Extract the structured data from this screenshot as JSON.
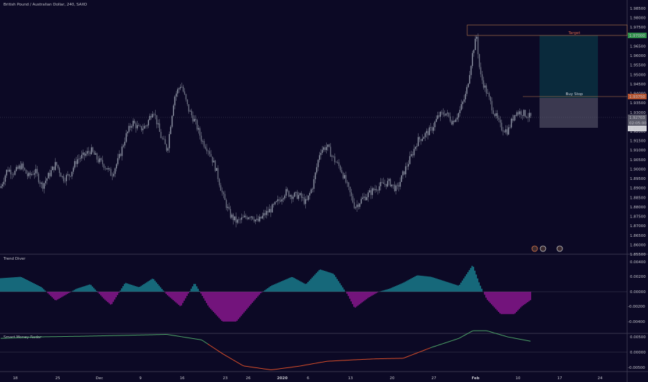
{
  "header": {
    "symbol_line": "British Pound / Australian Dollar, 240, SAXO"
  },
  "colors": {
    "background": "#0c0925",
    "candle": "#8a8f9f",
    "target_zone": "#0a2a3c",
    "stop_zone": "#4b4a5f",
    "target_tag": "#2f8f4a",
    "buystop_tag": "#b4532f",
    "level_line": "#c7824f",
    "osc_pos": "#1fb6c0",
    "osc_neg": "#c81ec4",
    "radar_green": "#4fa96a",
    "radar_red": "#e0502a"
  },
  "main_axis": {
    "ticks": [
      "1.98500",
      "1.98000",
      "1.97500",
      "1.96500",
      "1.96000",
      "1.95500",
      "1.95000",
      "1.94500",
      "1.94000",
      "1.93500",
      "1.93000",
      "1.92500",
      "1.92000",
      "1.91500",
      "1.91000",
      "1.90500",
      "1.90000",
      "1.89500",
      "1.89000",
      "1.88500",
      "1.88000",
      "1.87500",
      "1.87000",
      "1.86500",
      "1.86000",
      "1.85500"
    ],
    "ymin": 1.855,
    "ymax": 1.985
  },
  "price_tags": {
    "target": "1.97000",
    "buystop": "1.93750",
    "current": "1.92703",
    "countdown": "02:05:00",
    "low": "1.92108"
  },
  "annotations": {
    "target_label": "Target",
    "buystop_label": "Buy Stop"
  },
  "indicators": {
    "trend": {
      "title": "Trend Diver",
      "ticks": [
        "0.00400",
        "0.00200",
        "0.00000",
        "-0.00200",
        "-0.00400"
      ]
    },
    "radar": {
      "title": "Smart Money Radar",
      "ticks": [
        "0.00500",
        "0.00000",
        "-0.00500"
      ]
    }
  },
  "x_axis": {
    "labels": [
      "18",
      "25",
      "Dec",
      "9",
      "16",
      "23",
      "26",
      "2020",
      "6",
      "13",
      "20",
      "27",
      "Feb",
      "10",
      "17",
      "24"
    ]
  },
  "chart_data": {
    "type": "candlestick",
    "y_range": [
      1.855,
      1.985
    ],
    "close_path": [
      [
        0,
        1.89
      ],
      [
        10,
        1.9
      ],
      [
        20,
        1.898
      ],
      [
        30,
        1.902
      ],
      [
        40,
        1.896
      ],
      [
        50,
        1.899
      ],
      [
        60,
        1.891
      ],
      [
        70,
        1.897
      ],
      [
        80,
        1.903
      ],
      [
        90,
        1.895
      ],
      [
        100,
        1.897
      ],
      [
        110,
        1.905
      ],
      [
        120,
        1.907
      ],
      [
        130,
        1.91
      ],
      [
        140,
        1.905
      ],
      [
        150,
        1.902
      ],
      [
        160,
        1.897
      ],
      [
        170,
        1.905
      ],
      [
        180,
        1.917
      ],
      [
        190,
        1.925
      ],
      [
        200,
        1.921
      ],
      [
        210,
        1.923
      ],
      [
        220,
        1.932
      ],
      [
        230,
        1.918
      ],
      [
        240,
        1.91
      ],
      [
        250,
        1.938
      ],
      [
        260,
        1.945
      ],
      [
        270,
        1.932
      ],
      [
        280,
        1.925
      ],
      [
        290,
        1.915
      ],
      [
        300,
        1.91
      ],
      [
        310,
        1.9
      ],
      [
        320,
        1.886
      ],
      [
        330,
        1.876
      ],
      [
        340,
        1.872
      ],
      [
        350,
        1.874
      ],
      [
        360,
        1.876
      ],
      [
        370,
        1.872
      ],
      [
        380,
        1.876
      ],
      [
        390,
        1.879
      ],
      [
        400,
        1.883
      ],
      [
        410,
        1.888
      ],
      [
        420,
        1.886
      ],
      [
        430,
        1.886
      ],
      [
        440,
        1.882
      ],
      [
        450,
        1.892
      ],
      [
        460,
        1.91
      ],
      [
        470,
        1.912
      ],
      [
        480,
        1.905
      ],
      [
        490,
        1.9
      ],
      [
        500,
        1.89
      ],
      [
        510,
        1.88
      ],
      [
        520,
        1.884
      ],
      [
        530,
        1.887
      ],
      [
        540,
        1.89
      ],
      [
        550,
        1.892
      ],
      [
        560,
        1.893
      ],
      [
        570,
        1.889
      ],
      [
        580,
        1.898
      ],
      [
        590,
        1.906
      ],
      [
        600,
        1.915
      ],
      [
        610,
        1.918
      ],
      [
        620,
        1.921
      ],
      [
        630,
        1.928
      ],
      [
        640,
        1.93
      ],
      [
        650,
        1.925
      ],
      [
        660,
        1.93
      ],
      [
        670,
        1.94
      ],
      [
        680,
        1.963
      ],
      [
        685,
        1.97
      ],
      [
        690,
        1.95
      ],
      [
        700,
        1.94
      ],
      [
        710,
        1.93
      ],
      [
        720,
        1.922
      ],
      [
        730,
        1.92
      ],
      [
        740,
        1.93
      ],
      [
        750,
        1.93
      ],
      [
        760,
        1.928
      ],
      [
        765,
        1.927
      ]
    ],
    "trend_diver": [
      [
        0,
        0.0018
      ],
      [
        30,
        0.002
      ],
      [
        60,
        0.0006
      ],
      [
        80,
        -0.0012
      ],
      [
        110,
        0.0004
      ],
      [
        130,
        0.001
      ],
      [
        150,
        -0.001
      ],
      [
        160,
        -0.0018
      ],
      [
        180,
        0.0012
      ],
      [
        200,
        0.0006
      ],
      [
        220,
        0.0018
      ],
      [
        240,
        -0.0004
      ],
      [
        260,
        -0.002
      ],
      [
        280,
        0.0012
      ],
      [
        300,
        -0.002
      ],
      [
        320,
        -0.004
      ],
      [
        340,
        -0.004
      ],
      [
        360,
        -0.0018
      ],
      [
        375,
        -0.0002
      ],
      [
        390,
        0.0008
      ],
      [
        400,
        0.0012
      ],
      [
        420,
        0.002
      ],
      [
        440,
        0.001
      ],
      [
        460,
        0.003
      ],
      [
        480,
        0.0024
      ],
      [
        500,
        -0.0004
      ],
      [
        510,
        -0.0022
      ],
      [
        530,
        -0.0008
      ],
      [
        545,
        0.0
      ],
      [
        560,
        0.0004
      ],
      [
        580,
        0.0012
      ],
      [
        600,
        0.0022
      ],
      [
        620,
        0.002
      ],
      [
        640,
        0.0014
      ],
      [
        660,
        0.0008
      ],
      [
        680,
        0.0036
      ],
      [
        690,
        0.001
      ],
      [
        700,
        -0.001
      ],
      [
        720,
        -0.003
      ],
      [
        740,
        -0.003
      ],
      [
        750,
        -0.002
      ],
      [
        765,
        -0.001
      ]
    ],
    "smart_money_radar": [
      [
        0,
        0.0045
      ],
      [
        60,
        0.005
      ],
      [
        120,
        0.0052
      ],
      [
        180,
        0.0055
      ],
      [
        240,
        0.0058
      ],
      [
        290,
        0.004
      ],
      [
        320,
        -0.0005
      ],
      [
        350,
        -0.0045
      ],
      [
        390,
        -0.0058
      ],
      [
        430,
        -0.0046
      ],
      [
        470,
        -0.003
      ],
      [
        510,
        -0.0025
      ],
      [
        540,
        -0.0022
      ],
      [
        580,
        -0.002
      ],
      [
        620,
        0.0015
      ],
      [
        660,
        0.0045
      ],
      [
        680,
        0.007
      ],
      [
        700,
        0.007
      ],
      [
        730,
        0.005
      ],
      [
        765,
        0.0035
      ]
    ]
  }
}
